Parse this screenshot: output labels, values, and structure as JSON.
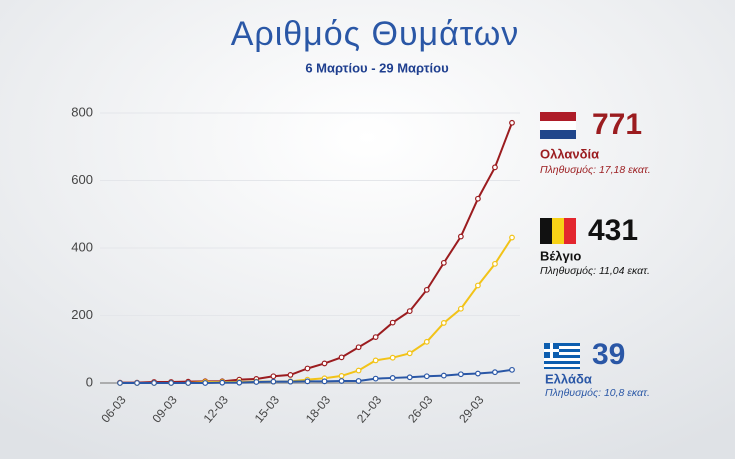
{
  "chart_data": {
    "type": "line",
    "title": "Αριθμός Θυμάτων",
    "subtitle": "6 Μαρτίου - 29 Μαρτίου",
    "categories": [
      "06-03",
      null,
      null,
      "09-03",
      null,
      null,
      "12-03",
      null,
      null,
      "15-03",
      null,
      null,
      "18-03",
      null,
      null,
      "21-03",
      null,
      null,
      "26-03",
      null,
      null,
      "29-03",
      null,
      null
    ],
    "series": [
      {
        "name": "Ολλανδία",
        "color": "#9b1c1f",
        "note": "Πληθυσμός: 17,18 εκατ.",
        "values": [
          1,
          1,
          3,
          3,
          4,
          5,
          5,
          10,
          12,
          20,
          24,
          43,
          58,
          76,
          106,
          136,
          179,
          213,
          276,
          356,
          434,
          546,
          639,
          771
        ]
      },
      {
        "name": "Βέλγιο",
        "color": "#f2c318",
        "note": "Πληθυσμός: 11,04 εκατ.",
        "values": [
          0,
          0,
          0,
          0,
          0,
          3,
          3,
          3,
          4,
          4,
          5,
          10,
          14,
          21,
          37,
          67,
          75,
          88,
          122,
          178,
          220,
          289,
          353,
          431
        ]
      },
      {
        "name": "Ελλάδα",
        "color": "#2a57a6",
        "note": "Πληθυσμός: 10,8 εκατ.",
        "values": [
          0,
          0,
          0,
          0,
          0,
          0,
          1,
          1,
          3,
          4,
          4,
          5,
          5,
          6,
          6,
          13,
          15,
          17,
          20,
          22,
          26,
          28,
          32,
          39
        ]
      }
    ],
    "ylim": [
      0,
      800
    ],
    "yticks": [
      0,
      200,
      400,
      600,
      800
    ],
    "grid": true
  }
}
